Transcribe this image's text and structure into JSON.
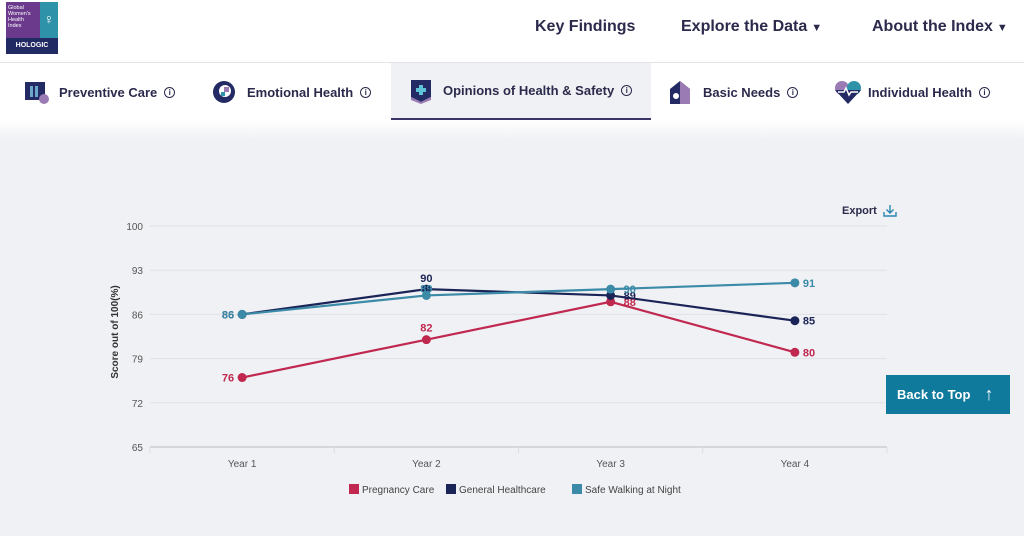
{
  "logo": {
    "line1": "Global",
    "line2": "Women's",
    "line3": "Health",
    "line4": "Index",
    "brand": "HOLOGIC",
    "symbol": "♀"
  },
  "nav": [
    {
      "label": "Key Findings",
      "caret": ""
    },
    {
      "label": "Explore the Data",
      "caret": "▼"
    },
    {
      "label": "About the Index",
      "caret": "▼"
    }
  ],
  "tabs": [
    {
      "label": "Preventive Care",
      "icon": "preventive-care-icon",
      "active": false
    },
    {
      "label": "Emotional Health",
      "icon": "emotional-health-icon",
      "active": false
    },
    {
      "label": "Opinions of Health & Safety",
      "icon": "health-safety-icon",
      "active": true
    },
    {
      "label": "Basic Needs",
      "icon": "basic-needs-icon",
      "active": false
    },
    {
      "label": "Individual Health",
      "icon": "individual-health-icon",
      "active": false
    }
  ],
  "info_glyph": "i",
  "export_label": "Export",
  "back_to_top": {
    "label": "Back to Top",
    "arrow": "🡑"
  },
  "colors": {
    "pregnancy": "#c0284f",
    "general": "#1b2457",
    "walking": "#3a8aa8",
    "accent": "#107a9c"
  },
  "chart_data": {
    "type": "line",
    "title": "",
    "xlabel": "",
    "ylabel": "Score out of 100(%)",
    "categories": [
      "Year 1",
      "Year 2",
      "Year 3",
      "Year 4"
    ],
    "ylim": [
      65,
      100
    ],
    "yticks": [
      65,
      72,
      79,
      86,
      93,
      100
    ],
    "grid": true,
    "legend": "bottom",
    "series": [
      {
        "name": "Pregnancy Care",
        "color": "#c0284f",
        "values": [
          76,
          82,
          88,
          80
        ]
      },
      {
        "name": "General Healthcare",
        "color": "#1b2457",
        "values": [
          86,
          90,
          89,
          85
        ]
      },
      {
        "name": "Safe Walking at Night",
        "color": "#3a8aa8",
        "values": [
          86,
          89,
          90,
          91
        ]
      }
    ]
  }
}
